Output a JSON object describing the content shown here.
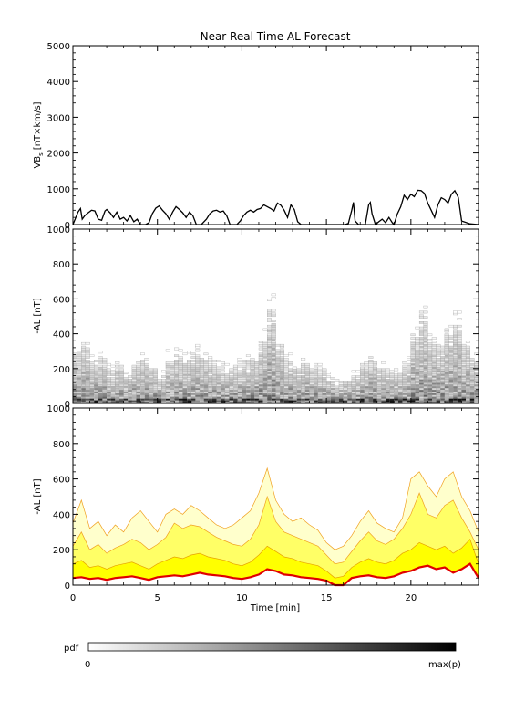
{
  "title": "Near Real Time AL Forecast",
  "chart_data": [
    {
      "type": "line",
      "name": "vbs-panel",
      "ylabel_main": "VB",
      "ylabel_sub": "s",
      "ylabel_unit": "[nT×km/s]",
      "ylim": [
        0,
        5000
      ],
      "xlim": [
        0,
        24
      ],
      "yticks": [
        0,
        1000,
        2000,
        3000,
        4000,
        5000
      ],
      "x": [
        0,
        0.3,
        0.45,
        0.55,
        0.7,
        0.9,
        1.1,
        1.3,
        1.5,
        1.7,
        1.9,
        2.0,
        2.2,
        2.4,
        2.6,
        2.8,
        3.0,
        3.2,
        3.4,
        3.6,
        3.8,
        4.0,
        4.3,
        4.5,
        4.7,
        4.9,
        5.1,
        5.3,
        5.5,
        5.7,
        5.9,
        6.1,
        6.3,
        6.5,
        6.7,
        6.9,
        7.1,
        7.3,
        7.6,
        7.9,
        8.1,
        8.3,
        8.5,
        8.7,
        8.9,
        9.1,
        9.3,
        9.5,
        9.7,
        9.9,
        10.1,
        10.3,
        10.5,
        10.7,
        10.9,
        11.1,
        11.3,
        11.5,
        11.7,
        11.9,
        12.1,
        12.3,
        12.5,
        12.7,
        12.9,
        13.1,
        13.3,
        13.5,
        13.7,
        13.9,
        14.1,
        14.3,
        14.5,
        14.7,
        14.9,
        15.1,
        15.3,
        15.5,
        15.7,
        15.9,
        16.1,
        16.3,
        16.5,
        16.6,
        16.7,
        16.9,
        17.1,
        17.3,
        17.5,
        17.6,
        17.7,
        17.9,
        18.1,
        18.3,
        18.5,
        18.7,
        18.9,
        19.0,
        19.2,
        19.4,
        19.6,
        19.8,
        20.0,
        20.2,
        20.4,
        20.6,
        20.8,
        21.0,
        21.2,
        21.4,
        21.6,
        21.8,
        22.0,
        22.2,
        22.4,
        22.6,
        22.8,
        23.0,
        23.5,
        24.0
      ],
      "y": [
        0,
        350,
        450,
        150,
        250,
        330,
        400,
        380,
        150,
        120,
        380,
        420,
        330,
        200,
        350,
        150,
        200,
        100,
        250,
        80,
        150,
        0,
        0,
        50,
        300,
        460,
        520,
        400,
        300,
        150,
        350,
        500,
        420,
        330,
        200,
        350,
        250,
        0,
        0,
        150,
        300,
        380,
        400,
        350,
        380,
        250,
        0,
        0,
        0,
        100,
        250,
        350,
        400,
        350,
        420,
        450,
        550,
        500,
        450,
        380,
        600,
        540,
        400,
        200,
        550,
        420,
        80,
        0,
        0,
        0,
        0,
        0,
        0,
        0,
        0,
        0,
        0,
        0,
        0,
        0,
        0,
        30,
        400,
        620,
        100,
        0,
        0,
        0,
        550,
        620,
        300,
        0,
        80,
        150,
        50,
        200,
        50,
        0,
        300,
        500,
        820,
        700,
        850,
        780,
        960,
        950,
        870,
        600,
        400,
        200,
        550,
        750,
        700,
        600,
        850,
        950,
        760,
        100,
        20,
        0
      ]
    },
    {
      "type": "heatmap",
      "name": "pdf-panel",
      "ylabel": "-AL [nT]",
      "ylim": [
        0,
        1000
      ],
      "xlim": [
        0,
        24
      ],
      "yticks": [
        0,
        200,
        400,
        600,
        800,
        1000
      ],
      "x": [
        0,
        0.5,
        1.0,
        1.5,
        2.0,
        2.5,
        3.0,
        3.5,
        4.0,
        4.5,
        5.0,
        5.5,
        6.0,
        6.5,
        7.0,
        7.5,
        8.0,
        8.5,
        9.0,
        9.5,
        10.0,
        10.5,
        11.0,
        11.5,
        12.0,
        12.5,
        13.0,
        13.5,
        14.0,
        14.5,
        15.0,
        15.5,
        16.0,
        16.5,
        17.0,
        17.5,
        18.0,
        18.5,
        19.0,
        19.5,
        20.0,
        20.5,
        21.0,
        21.5,
        22.0,
        22.5,
        23.0,
        23.5
      ],
      "spread": [
        350,
        380,
        280,
        300,
        220,
        250,
        200,
        260,
        280,
        240,
        180,
        300,
        320,
        290,
        330,
        300,
        260,
        240,
        220,
        250,
        280,
        300,
        420,
        620,
        380,
        280,
        250,
        260,
        240,
        220,
        170,
        140,
        150,
        180,
        250,
        300,
        240,
        220,
        200,
        260,
        450,
        600,
        420,
        380,
        480,
        520,
        380,
        300
      ]
    },
    {
      "type": "area",
      "name": "forecast-panel",
      "ylabel": "-AL [nT]",
      "xlabel": "Time [min]",
      "ylim": [
        0,
        1000
      ],
      "xlim": [
        0,
        24
      ],
      "yticks": [
        0,
        200,
        400,
        600,
        800,
        1000
      ],
      "xticks": [
        0,
        5,
        10,
        15,
        20
      ],
      "x": [
        0,
        0.5,
        1.0,
        1.5,
        2.0,
        2.5,
        3.0,
        3.5,
        4.0,
        4.5,
        5.0,
        5.5,
        6.0,
        6.5,
        7.0,
        7.5,
        8.0,
        8.5,
        9.0,
        9.5,
        10.0,
        10.5,
        11.0,
        11.5,
        12.0,
        12.5,
        13.0,
        13.5,
        14.0,
        14.5,
        15.0,
        15.5,
        16.0,
        16.5,
        17.0,
        17.5,
        18.0,
        18.5,
        19.0,
        19.5,
        20.0,
        20.5,
        21.0,
        21.5,
        22.0,
        22.5,
        23.0,
        23.5,
        24.0
      ],
      "series": [
        {
          "values": [
            40,
            45,
            35,
            40,
            30,
            40,
            45,
            50,
            40,
            30,
            45,
            50,
            55,
            50,
            60,
            70,
            60,
            55,
            50,
            40,
            35,
            45,
            60,
            90,
            80,
            60,
            55,
            45,
            40,
            35,
            25,
            0,
            0,
            40,
            50,
            55,
            45,
            40,
            50,
            70,
            80,
            100,
            110,
            90,
            100,
            70,
            90,
            120,
            40
          ]
        },
        {
          "values": [
            120,
            140,
            100,
            110,
            90,
            110,
            120,
            130,
            110,
            90,
            120,
            140,
            160,
            150,
            170,
            180,
            160,
            150,
            140,
            120,
            110,
            130,
            170,
            220,
            190,
            160,
            150,
            130,
            120,
            110,
            80,
            40,
            50,
            100,
            130,
            150,
            130,
            120,
            140,
            180,
            200,
            240,
            220,
            200,
            220,
            180,
            210,
            260,
            120
          ]
        },
        {
          "values": [
            220,
            300,
            200,
            230,
            180,
            210,
            230,
            260,
            240,
            200,
            230,
            270,
            350,
            320,
            340,
            330,
            300,
            270,
            250,
            230,
            220,
            260,
            340,
            500,
            360,
            300,
            280,
            260,
            240,
            220,
            170,
            120,
            130,
            190,
            250,
            300,
            250,
            230,
            260,
            320,
            400,
            520,
            400,
            380,
            450,
            480,
            380,
            300,
            200
          ]
        },
        {
          "values": [
            350,
            480,
            320,
            360,
            280,
            340,
            300,
            380,
            420,
            360,
            300,
            400,
            430,
            400,
            450,
            420,
            380,
            340,
            320,
            340,
            380,
            420,
            520,
            660,
            480,
            400,
            360,
            380,
            340,
            310,
            240,
            200,
            220,
            280,
            360,
            420,
            350,
            320,
            300,
            380,
            600,
            640,
            560,
            500,
            600,
            640,
            500,
            420,
            300
          ]
        }
      ]
    }
  ],
  "colorbar": {
    "label": "pdf",
    "min_label": "0",
    "max_label": "max(p)"
  }
}
